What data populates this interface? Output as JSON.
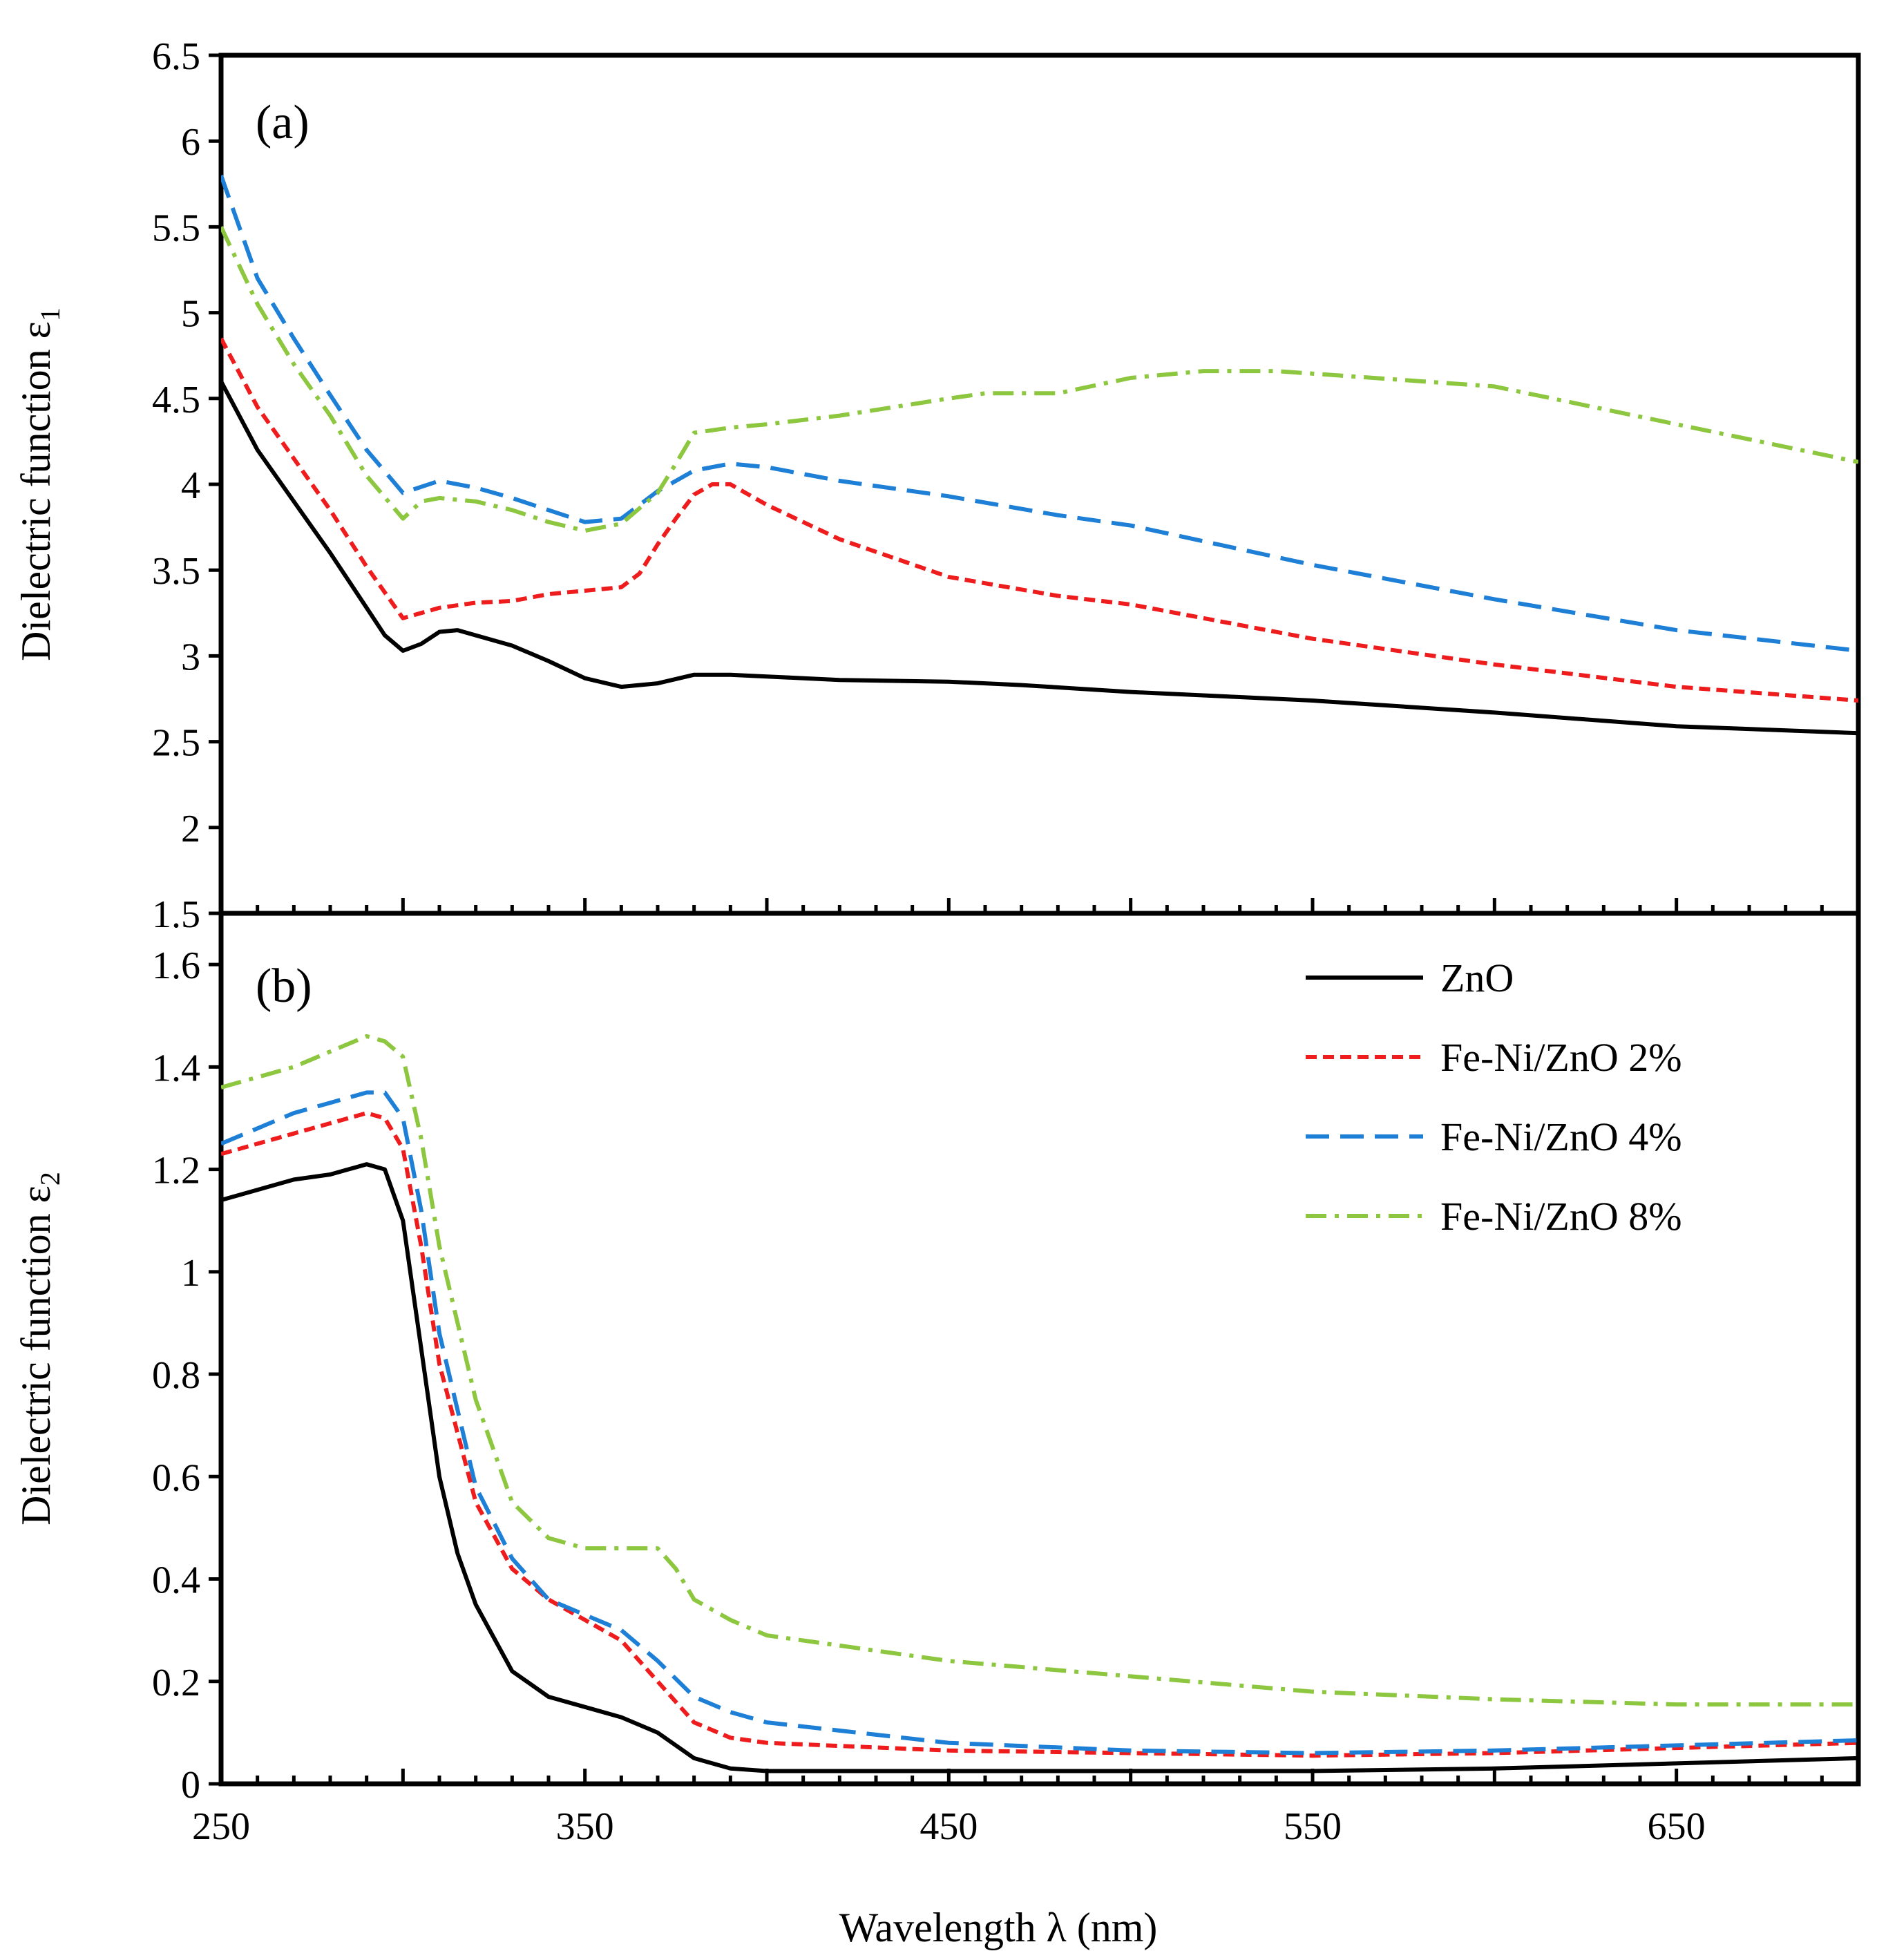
{
  "chart_data": [
    {
      "type": "line",
      "panel_label": "(a)",
      "ylabel": "Dielectric function ε",
      "ylabel_subscript": "1",
      "xlabel": "",
      "xlim": [
        250,
        700
      ],
      "ylim": [
        1.5,
        6.5
      ],
      "xticks": [
        "250",
        "350",
        "450",
        "550",
        "650"
      ],
      "yticks": [
        "1.5",
        "2",
        "2.5",
        "3",
        "3.5",
        "4",
        "4.5",
        "5",
        "5.5",
        "6",
        "6.5"
      ],
      "grid": false,
      "series": [
        {
          "name": "ZnO",
          "color": "#000000",
          "dash": "solid",
          "x": [
            250,
            260,
            270,
            280,
            290,
            295,
            300,
            305,
            310,
            315,
            320,
            330,
            340,
            350,
            360,
            370,
            380,
            390,
            400,
            420,
            450,
            470,
            500,
            530,
            550,
            600,
            650,
            700
          ],
          "y": [
            4.6,
            4.2,
            3.9,
            3.6,
            3.28,
            3.12,
            3.03,
            3.07,
            3.14,
            3.15,
            3.12,
            3.06,
            2.97,
            2.87,
            2.82,
            2.84,
            2.89,
            2.89,
            2.88,
            2.86,
            2.85,
            2.83,
            2.79,
            2.76,
            2.74,
            2.67,
            2.59,
            2.55
          ]
        },
        {
          "name": "Fe-Ni/ZnO 2%",
          "color": "#ee1c1c",
          "dash": "short",
          "x": [
            250,
            260,
            270,
            280,
            290,
            300,
            310,
            320,
            330,
            340,
            350,
            360,
            365,
            370,
            375,
            380,
            385,
            390,
            400,
            420,
            450,
            480,
            500,
            550,
            600,
            650,
            700
          ],
          "y": [
            4.85,
            4.45,
            4.15,
            3.85,
            3.52,
            3.22,
            3.28,
            3.31,
            3.32,
            3.36,
            3.38,
            3.4,
            3.48,
            3.65,
            3.8,
            3.94,
            4.0,
            4.0,
            3.88,
            3.68,
            3.46,
            3.35,
            3.3,
            3.1,
            2.95,
            2.82,
            2.74
          ]
        },
        {
          "name": "Fe-Ni/ZnO 4%",
          "color": "#1e7fd6",
          "dash": "long",
          "x": [
            250,
            260,
            270,
            280,
            290,
            300,
            310,
            320,
            330,
            340,
            350,
            360,
            370,
            380,
            390,
            400,
            420,
            450,
            480,
            500,
            550,
            600,
            650,
            700
          ],
          "y": [
            5.8,
            5.2,
            4.85,
            4.52,
            4.2,
            3.95,
            4.02,
            3.98,
            3.92,
            3.85,
            3.78,
            3.8,
            3.96,
            4.08,
            4.12,
            4.1,
            4.02,
            3.93,
            3.82,
            3.76,
            3.53,
            3.33,
            3.15,
            3.03
          ]
        },
        {
          "name": "Fe-Ni/ZnO 8%",
          "color": "#8dc63f",
          "dash": "dashdot",
          "x": [
            250,
            260,
            270,
            280,
            290,
            300,
            305,
            310,
            320,
            330,
            340,
            350,
            360,
            370,
            375,
            380,
            390,
            400,
            420,
            450,
            460,
            480,
            500,
            520,
            540,
            560,
            600,
            650,
            700
          ],
          "y": [
            5.5,
            5.05,
            4.7,
            4.4,
            4.05,
            3.8,
            3.9,
            3.92,
            3.9,
            3.85,
            3.78,
            3.73,
            3.77,
            3.95,
            4.12,
            4.3,
            4.33,
            4.35,
            4.4,
            4.5,
            4.53,
            4.53,
            4.62,
            4.66,
            4.66,
            4.63,
            4.57,
            4.35,
            4.13
          ]
        }
      ]
    },
    {
      "type": "line",
      "panel_label": "(b)",
      "ylabel": "Dielectric function ε",
      "ylabel_subscript": "2",
      "xlabel": "Wavelength λ (nm)",
      "xlim": [
        250,
        700
      ],
      "ylim": [
        0,
        1.7
      ],
      "xticks": [
        "250",
        "350",
        "450",
        "550",
        "650"
      ],
      "yticks": [
        "0",
        "0.2",
        "0.4",
        "0.6",
        "0.8",
        "1",
        "1.2",
        "1.4",
        "1.6"
      ],
      "grid": false,
      "legend": "top-right",
      "series": [
        {
          "name": "ZnO",
          "color": "#000000",
          "dash": "solid",
          "x": [
            250,
            260,
            270,
            280,
            290,
            295,
            300,
            305,
            310,
            315,
            320,
            330,
            340,
            350,
            360,
            370,
            380,
            390,
            400,
            450,
            500,
            550,
            600,
            650,
            700
          ],
          "y": [
            1.14,
            1.16,
            1.18,
            1.19,
            1.21,
            1.2,
            1.1,
            0.85,
            0.6,
            0.45,
            0.35,
            0.22,
            0.17,
            0.15,
            0.13,
            0.1,
            0.05,
            0.03,
            0.025,
            0.025,
            0.025,
            0.025,
            0.03,
            0.04,
            0.05
          ]
        },
        {
          "name": "Fe-Ni/ZnO 2%",
          "color": "#ee1c1c",
          "dash": "short",
          "x": [
            250,
            260,
            270,
            280,
            290,
            295,
            300,
            305,
            310,
            320,
            330,
            340,
            350,
            360,
            370,
            380,
            390,
            400,
            450,
            500,
            550,
            600,
            650,
            700
          ],
          "y": [
            1.23,
            1.25,
            1.27,
            1.29,
            1.31,
            1.3,
            1.24,
            1.05,
            0.82,
            0.55,
            0.42,
            0.36,
            0.32,
            0.28,
            0.2,
            0.12,
            0.09,
            0.08,
            0.065,
            0.06,
            0.055,
            0.06,
            0.07,
            0.08
          ]
        },
        {
          "name": "Fe-Ni/ZnO 4%",
          "color": "#1e7fd6",
          "dash": "long",
          "x": [
            250,
            260,
            270,
            280,
            290,
            295,
            300,
            305,
            310,
            320,
            330,
            340,
            350,
            360,
            370,
            380,
            390,
            400,
            450,
            500,
            550,
            600,
            650,
            700
          ],
          "y": [
            1.25,
            1.28,
            1.31,
            1.33,
            1.35,
            1.35,
            1.3,
            1.12,
            0.88,
            0.58,
            0.44,
            0.36,
            0.33,
            0.3,
            0.24,
            0.17,
            0.14,
            0.12,
            0.08,
            0.065,
            0.06,
            0.065,
            0.075,
            0.085
          ]
        },
        {
          "name": "Fe-Ni/ZnO 8%",
          "color": "#8dc63f",
          "dash": "dashdot",
          "x": [
            250,
            260,
            270,
            280,
            290,
            295,
            300,
            305,
            310,
            320,
            330,
            340,
            350,
            360,
            370,
            375,
            380,
            390,
            400,
            450,
            500,
            550,
            600,
            650,
            700
          ],
          "y": [
            1.36,
            1.38,
            1.4,
            1.43,
            1.46,
            1.45,
            1.42,
            1.26,
            1.05,
            0.75,
            0.55,
            0.48,
            0.46,
            0.46,
            0.46,
            0.42,
            0.36,
            0.32,
            0.29,
            0.24,
            0.21,
            0.18,
            0.165,
            0.155,
            0.155
          ]
        }
      ]
    }
  ]
}
